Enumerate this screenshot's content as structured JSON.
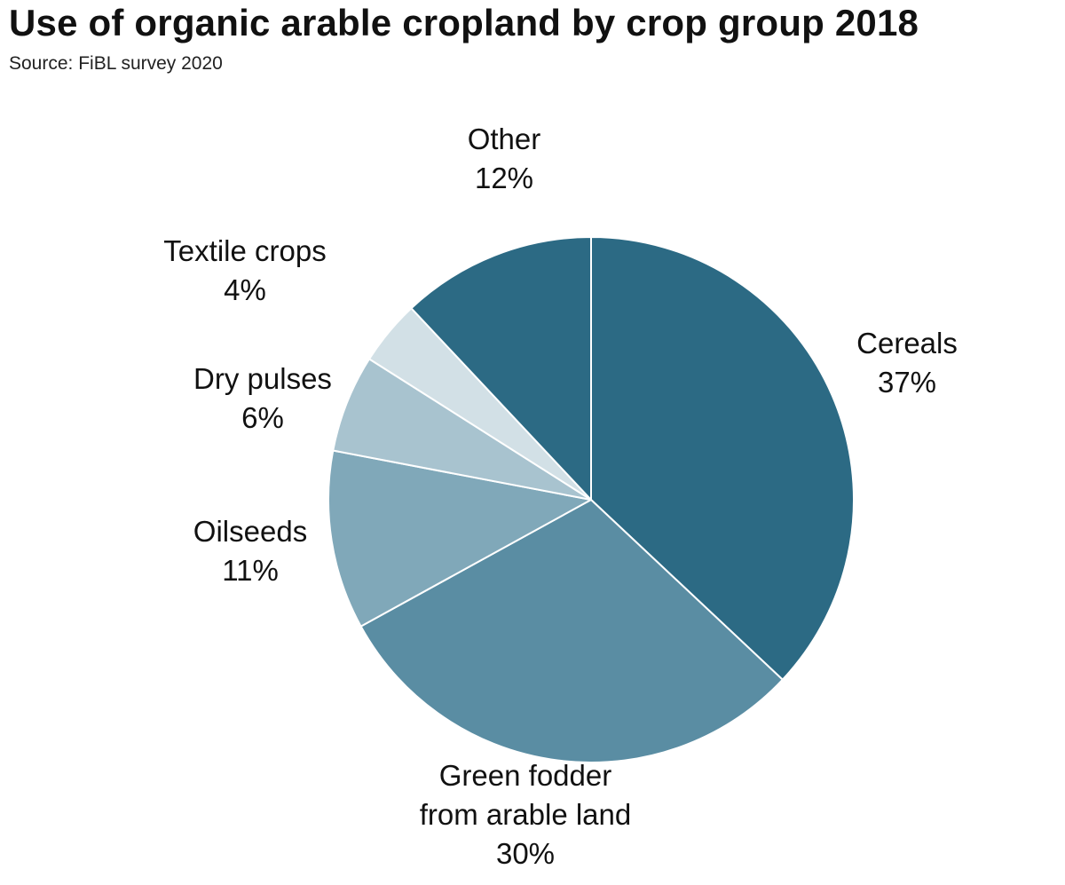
{
  "title": "Use of organic arable cropland by crop group 2018",
  "subtitle": "Source: FiBL survey 2020",
  "chart_data": {
    "type": "pie",
    "title": "Use of organic arable cropland by crop group 2018",
    "subtitle": "Source: FiBL survey 2020",
    "start": "12 o'clock",
    "direction": "clockwise",
    "slices": [
      {
        "name": "Cereals",
        "label_lines": [
          "Cereals"
        ],
        "percent_label": "37%",
        "value": 37,
        "color": "#2c6a84"
      },
      {
        "name": "Green fodder from arable land",
        "label_lines": [
          "Green fodder",
          "from arable land"
        ],
        "percent_label": "30%",
        "value": 30,
        "color": "#5a8da3"
      },
      {
        "name": "Oilseeds",
        "label_lines": [
          "Oilseeds"
        ],
        "percent_label": "11%",
        "value": 11,
        "color": "#80a8b9"
      },
      {
        "name": "Dry pulses",
        "label_lines": [
          "Dry pulses"
        ],
        "percent_label": "6%",
        "value": 6,
        "color": "#a8c3cf"
      },
      {
        "name": "Textile crops",
        "label_lines": [
          "Textile crops"
        ],
        "percent_label": "4%",
        "value": 4,
        "color": "#d2e0e6"
      },
      {
        "name": "Other",
        "label_lines": [
          "Other"
        ],
        "percent_label": "12%",
        "value": 12,
        "color": "#2c6a84"
      }
    ],
    "slice_border_color": "#ffffff"
  }
}
